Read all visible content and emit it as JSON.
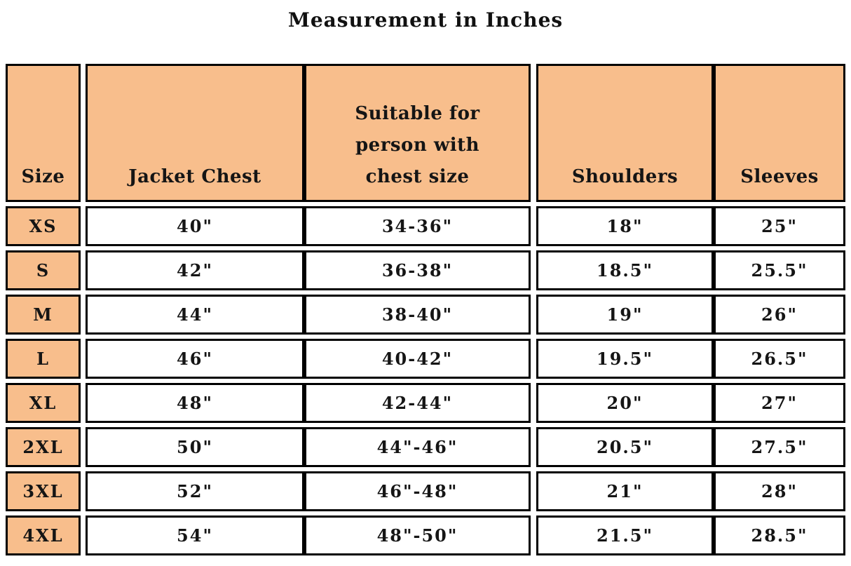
{
  "title": "Measurement in Inches",
  "colors": {
    "header_bg": "#F8BE8C",
    "size_column_bg": "#F8BE8C",
    "border": "#000000",
    "cell_bg": "#FFFFFF",
    "text": "#111111"
  },
  "chart_data": {
    "type": "table",
    "title": "Measurement in Inches",
    "columns": [
      "Size",
      "Jacket Chest",
      "Suitable for person with chest size",
      "Shoulders",
      "Sleeves"
    ],
    "rows": [
      [
        "XS",
        "40\"",
        "34-36\"",
        "18\"",
        "25\""
      ],
      [
        "S",
        "42\"",
        "36-38\"",
        "18.5\"",
        "25.5\""
      ],
      [
        "M",
        "44\"",
        "38-40\"",
        "19\"",
        "26\""
      ],
      [
        "L",
        "46\"",
        "40-42\"",
        "19.5\"",
        "26.5\""
      ],
      [
        "XL",
        "48\"",
        "42-44\"",
        "20\"",
        "27\""
      ],
      [
        "2XL",
        "50\"",
        "44\"-46\"",
        "20.5\"",
        "27.5\""
      ],
      [
        "3XL",
        "52\"",
        "46\"-48\"",
        "21\"",
        "28\""
      ],
      [
        "4XL",
        "54\"",
        "48\"-50\"",
        "21.5\"",
        "28.5\""
      ]
    ]
  }
}
